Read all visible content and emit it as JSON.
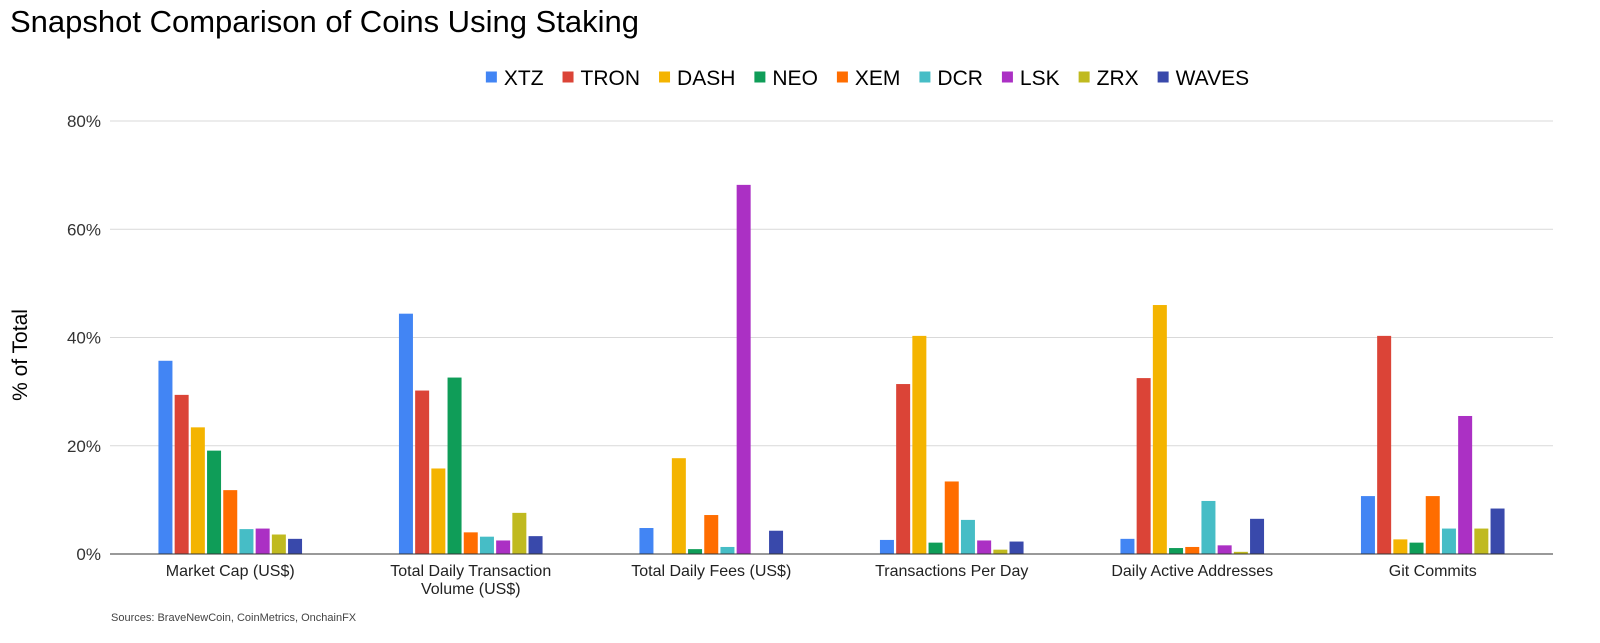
{
  "chart_data": {
    "type": "bar",
    "title": "Snapshot Comparison of Coins Using Staking",
    "ylabel": "% of Total",
    "xlabel": "",
    "ylim": [
      0,
      80
    ],
    "yticks": [
      0,
      20,
      40,
      60,
      80
    ],
    "ytick_labels": [
      "0%",
      "20%",
      "40%",
      "60%",
      "80%"
    ],
    "grid": true,
    "legend_position": "top-center",
    "categories": [
      [
        "Market Cap (US$)"
      ],
      [
        "Total Daily Transaction",
        "Volume (US$)"
      ],
      [
        "Total Daily Fees (US$)"
      ],
      [
        "Transactions Per Day"
      ],
      [
        "Daily Active Addresses"
      ],
      [
        "Git Commits"
      ]
    ],
    "series": [
      {
        "name": "XTZ",
        "color": "#4285f4",
        "values": [
          35.7,
          44.4,
          4.8,
          2.6,
          2.8,
          10.7
        ]
      },
      {
        "name": "TRON",
        "color": "#db4437",
        "values": [
          29.4,
          30.2,
          0,
          31.4,
          32.5,
          40.3
        ]
      },
      {
        "name": "DASH",
        "color": "#f4b400",
        "values": [
          23.4,
          15.8,
          17.7,
          40.3,
          46.0,
          2.7
        ]
      },
      {
        "name": "NEO",
        "color": "#0f9d58",
        "values": [
          19.1,
          32.6,
          0.9,
          2.1,
          1.1,
          2.1
        ]
      },
      {
        "name": "XEM",
        "color": "#ff6d00",
        "values": [
          11.8,
          4.0,
          7.2,
          13.4,
          1.3,
          10.7
        ]
      },
      {
        "name": "DCR",
        "color": "#46bdc6",
        "values": [
          4.6,
          3.2,
          1.3,
          6.3,
          9.8,
          4.7
        ]
      },
      {
        "name": "LSK",
        "color": "#ab30c4",
        "values": [
          4.7,
          2.5,
          68.2,
          2.5,
          1.6,
          25.5
        ]
      },
      {
        "name": "ZRX",
        "color": "#c0ba1f",
        "values": [
          3.6,
          7.6,
          0,
          0.8,
          0.4,
          4.7
        ]
      },
      {
        "name": "WAVES",
        "color": "#3949ab",
        "values": [
          2.8,
          3.3,
          4.3,
          2.3,
          6.5,
          8.4
        ]
      }
    ]
  },
  "source_note": "Sources: BraveNewCoin, CoinMetrics, OnchainFX"
}
